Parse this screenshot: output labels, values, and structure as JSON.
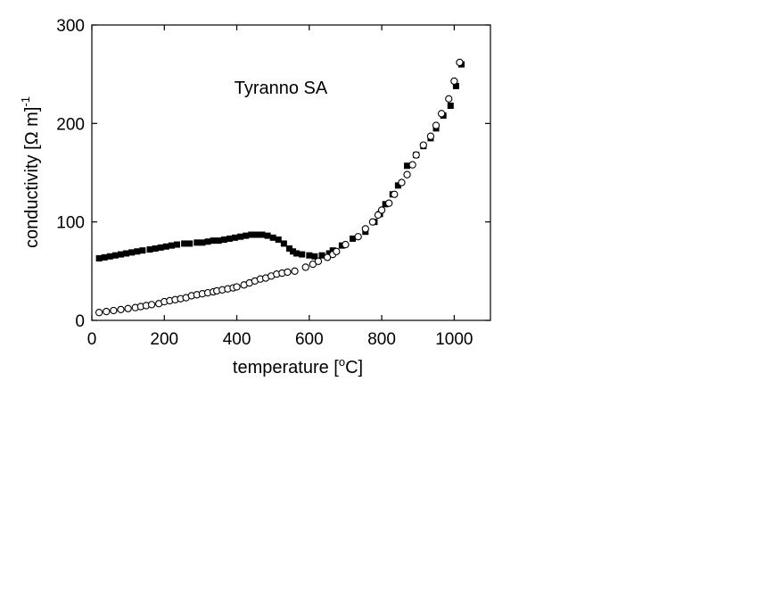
{
  "chart_data": {
    "type": "scatter",
    "title": "",
    "annotation": "Tyranno SA",
    "xlabel": {
      "text": "temperature [",
      "sup": "o",
      "tail": "C]"
    },
    "ylabel": {
      "text": "conductivity [Ω m]",
      "sup": "-1"
    },
    "xlim": [
      0,
      1100
    ],
    "ylim": [
      0,
      300
    ],
    "xticks": [
      0,
      200,
      400,
      600,
      800,
      1000
    ],
    "yticks": [
      0,
      100,
      200,
      300
    ],
    "grid": false,
    "series": [
      {
        "marker": "filled-square",
        "color": "#000000",
        "x": [
          20,
          35,
          50,
          65,
          80,
          95,
          110,
          125,
          140,
          160,
          175,
          190,
          205,
          220,
          235,
          255,
          270,
          290,
          305,
          320,
          335,
          350,
          365,
          380,
          395,
          410,
          425,
          440,
          455,
          470,
          485,
          500,
          515,
          530,
          545,
          555,
          565,
          580,
          600,
          615,
          635,
          655,
          665,
          690,
          720,
          755,
          780,
          795,
          810,
          830,
          845,
          870,
          895,
          915,
          935,
          950,
          970,
          990,
          1005,
          1020
        ],
        "y": [
          63,
          64,
          65,
          66,
          67,
          68,
          69,
          70,
          71,
          72,
          73,
          74,
          75,
          76,
          77,
          78,
          78,
          79,
          79,
          80,
          81,
          81,
          82,
          83,
          84,
          85,
          86,
          87,
          87,
          87,
          86,
          84,
          82,
          78,
          73,
          70,
          68,
          67,
          66,
          65,
          66,
          68,
          71,
          76,
          83,
          90,
          100,
          108,
          118,
          128,
          137,
          157,
          168,
          177,
          185,
          195,
          208,
          218,
          238,
          260
        ]
      },
      {
        "marker": "open-circle",
        "color": "#000000",
        "x": [
          20,
          40,
          60,
          80,
          100,
          120,
          135,
          150,
          165,
          185,
          200,
          215,
          230,
          245,
          260,
          275,
          290,
          305,
          320,
          335,
          345,
          360,
          375,
          390,
          400,
          420,
          435,
          450,
          465,
          480,
          495,
          510,
          525,
          540,
          560,
          590,
          610,
          625,
          650,
          665,
          675,
          700,
          735,
          755,
          775,
          790,
          800,
          820,
          835,
          855,
          870,
          885,
          895,
          915,
          935,
          950,
          965,
          985,
          1000,
          1015
        ],
        "y": [
          8,
          9,
          10,
          11,
          12,
          13,
          14,
          15,
          16,
          17,
          19,
          20,
          21,
          22,
          23,
          25,
          26,
          27,
          28,
          29,
          30,
          31,
          32,
          33,
          34,
          36,
          38,
          40,
          42,
          43,
          45,
          47,
          48,
          49,
          50,
          54,
          57,
          60,
          64,
          67,
          70,
          77,
          85,
          93,
          100,
          107,
          112,
          119,
          128,
          140,
          148,
          158,
          168,
          178,
          187,
          198,
          210,
          225,
          243,
          262
        ]
      }
    ]
  }
}
